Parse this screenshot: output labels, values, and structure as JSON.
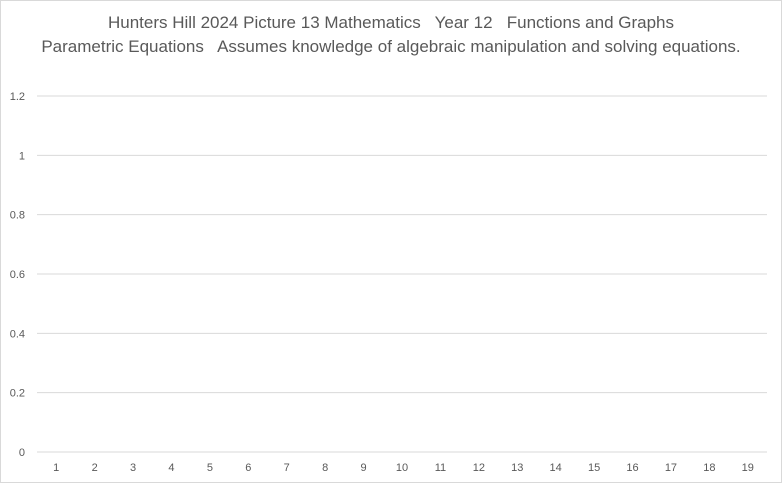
{
  "chart_data": {
    "type": "line",
    "title": "Hunters Hill 2024 Picture 13 Mathematics   Year 12   Functions and Graphs\nParametric Equations   Assumes knowledge of algebraic manipulation and solving equations.",
    "categories": [
      "1",
      "2",
      "3",
      "4",
      "5",
      "6",
      "7",
      "8",
      "9",
      "10",
      "11",
      "12",
      "13",
      "14",
      "15",
      "16",
      "17",
      "18",
      "19"
    ],
    "series": [],
    "ylim": [
      0,
      1.2
    ],
    "yticks": [
      "0",
      "0.2",
      "0.4",
      "0.6",
      "0.8",
      "1",
      "1.2"
    ],
    "grid": true,
    "legend": "none",
    "colors": {
      "grid": "#d9d9d9",
      "text": "#595959"
    }
  }
}
